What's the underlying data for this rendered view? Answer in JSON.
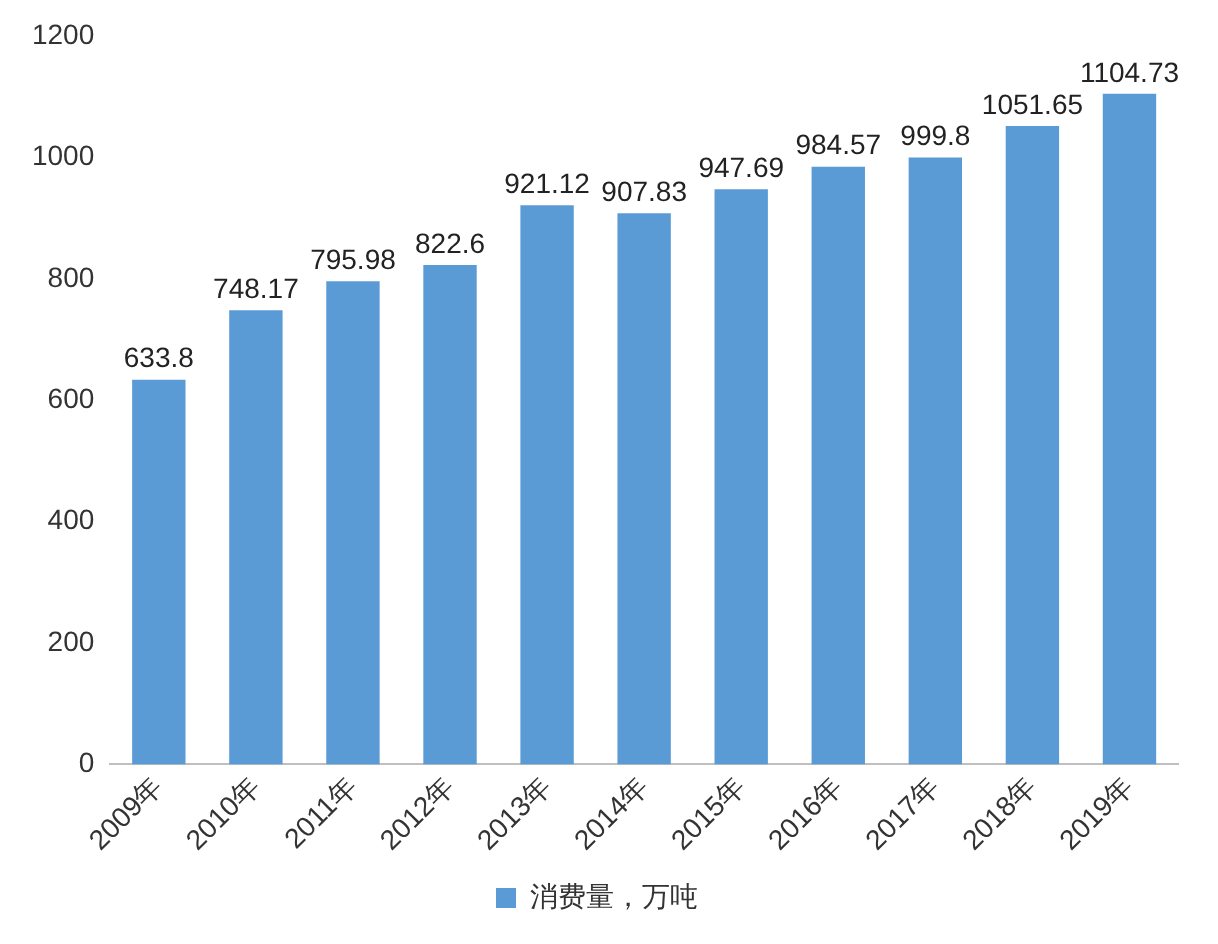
{
  "chart_data": {
    "type": "bar",
    "categories": [
      "2009年",
      "2010年",
      "2011年",
      "2012年",
      "2013年",
      "2014年",
      "2015年",
      "2016年",
      "2017年",
      "2018年",
      "2019年"
    ],
    "series": [
      {
        "name": "消费量，万吨",
        "color": "#5b9bd5",
        "values": [
          633.8,
          748.17,
          795.98,
          822.6,
          921.12,
          907.83,
          947.69,
          984.57,
          999.8,
          1051.65,
          1104.73
        ]
      }
    ],
    "ylim": [
      0,
      1200
    ],
    "yticks": [
      0,
      200,
      400,
      600,
      800,
      1000,
      1200
    ],
    "grid": false,
    "legend": "bottom",
    "data_labels": true
  }
}
